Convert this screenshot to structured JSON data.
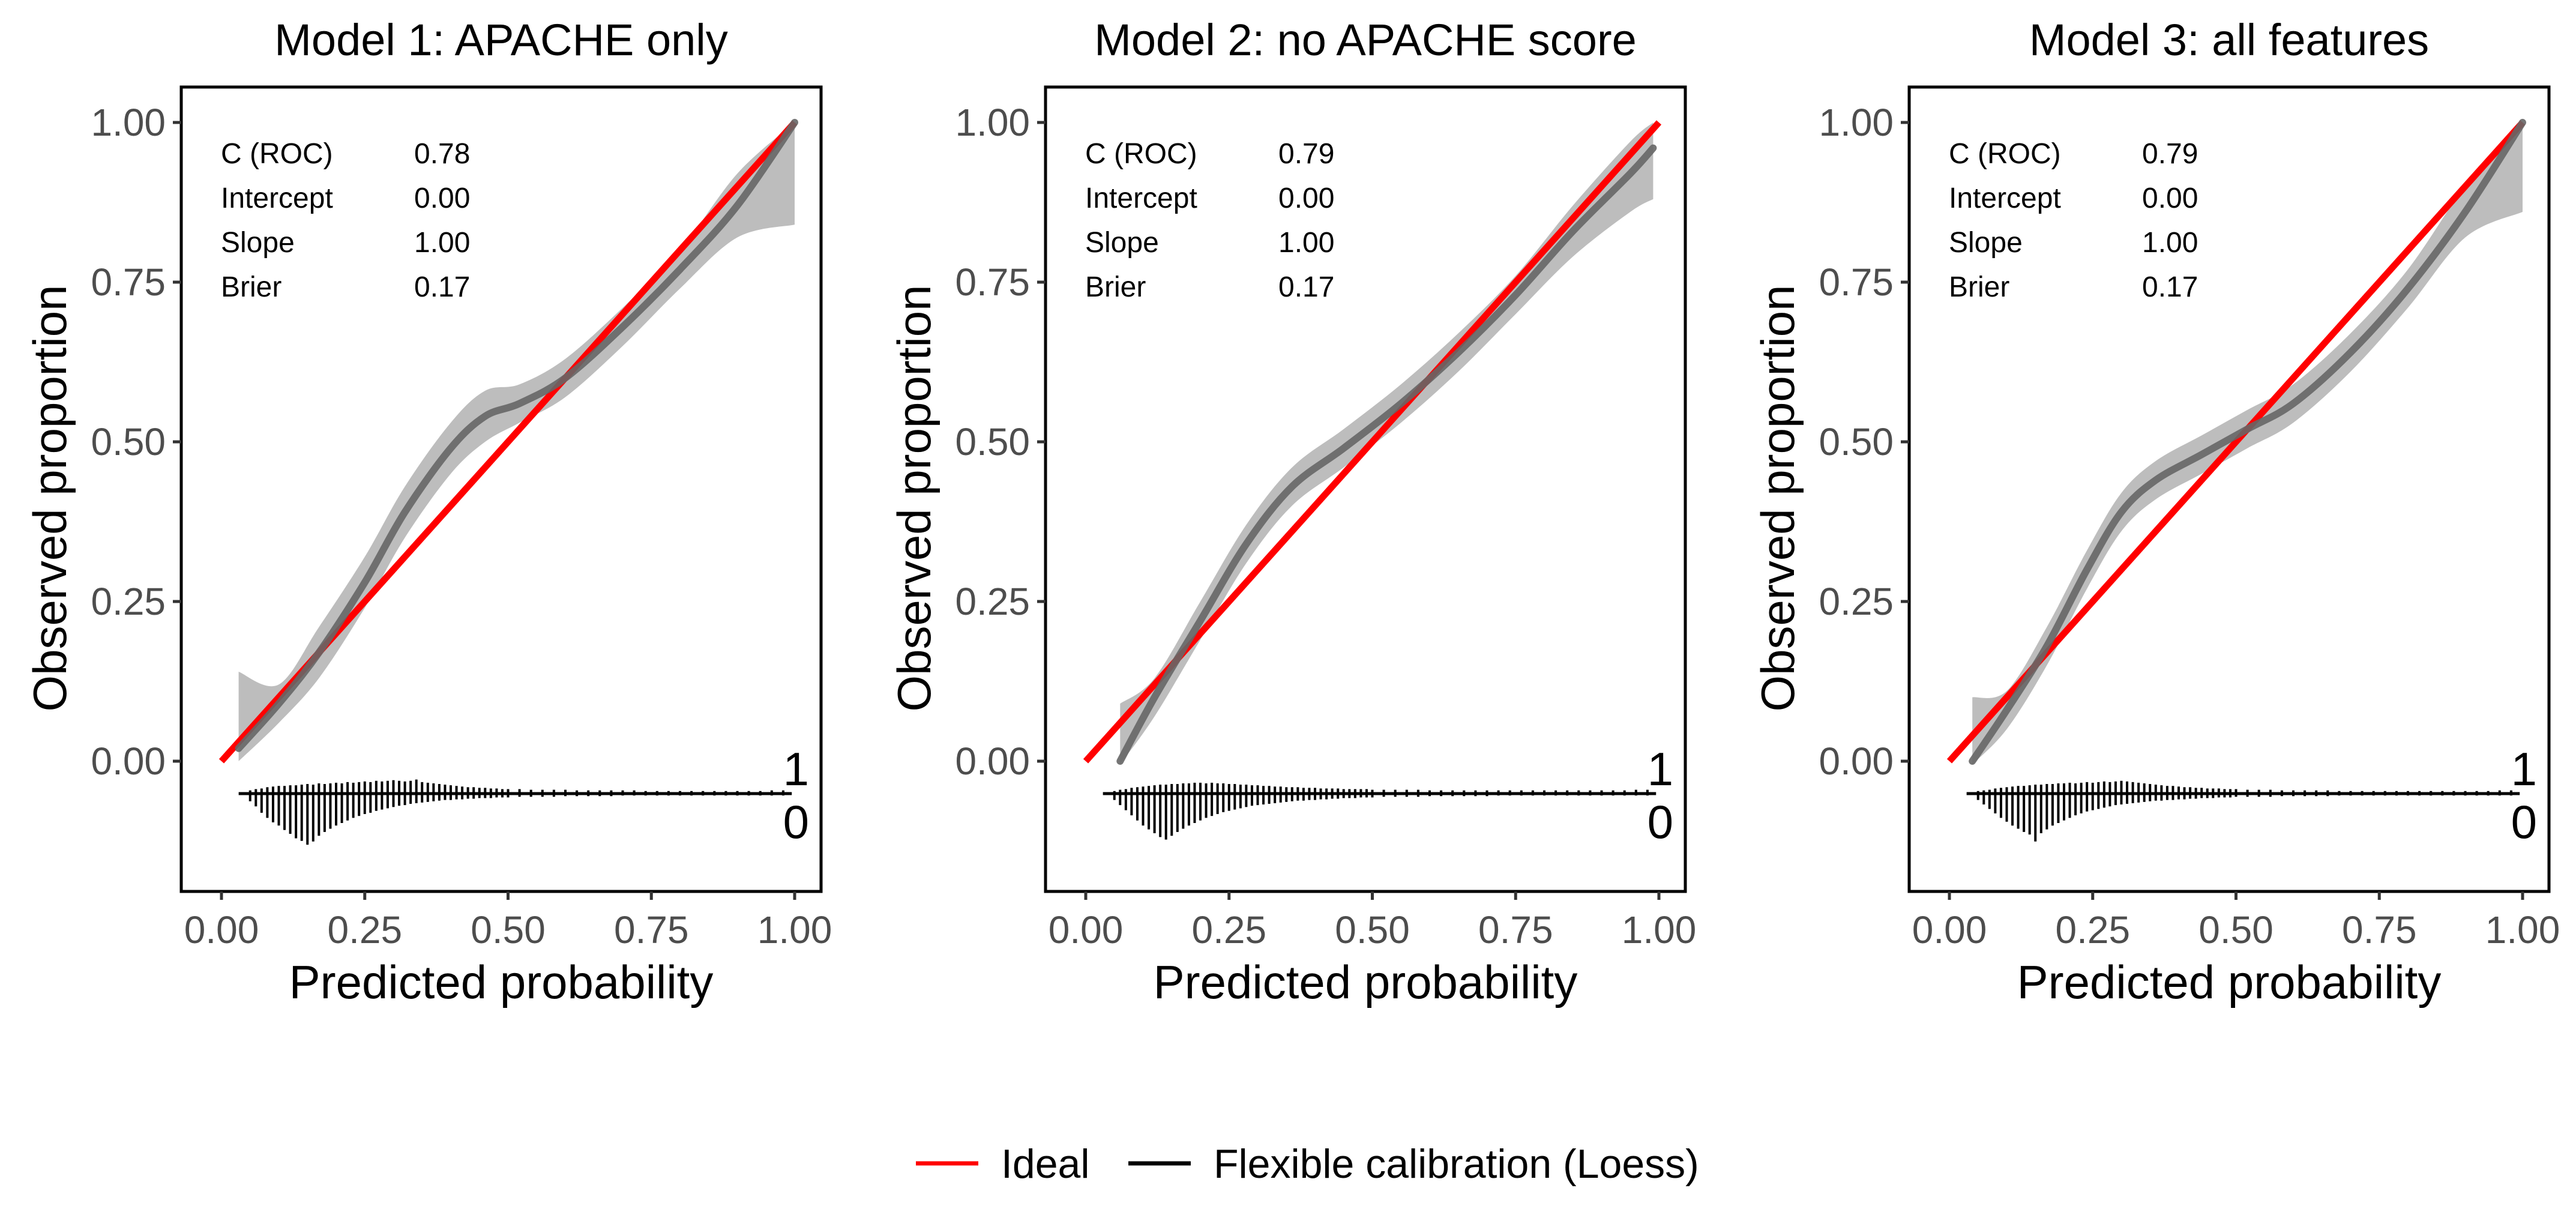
{
  "chart_data": [
    {
      "type": "line",
      "title": "Model 1: APACHE only",
      "xlabel": "Predicted probability",
      "ylabel": "Observed proportion",
      "xlim": [
        0,
        1
      ],
      "ylim": [
        -0.2,
        1.05
      ],
      "x_ticks": [
        0,
        0.25,
        0.5,
        0.75,
        1
      ],
      "x_tick_labels": [
        "0.00",
        "0.25",
        "0.50",
        "0.75",
        "1.00"
      ],
      "y_ticks": [
        0,
        0.25,
        0.5,
        0.75,
        1
      ],
      "y_tick_labels": [
        "0.00",
        "0.25",
        "0.50",
        "0.75",
        "1.00"
      ],
      "stats": [
        {
          "label": "C (ROC)",
          "value": "0.78"
        },
        {
          "label": "Intercept",
          "value": "0.00"
        },
        {
          "label": "Slope",
          "value": "1.00"
        },
        {
          "label": "Brier",
          "value": "0.17"
        }
      ],
      "series": [
        {
          "name": "Ideal",
          "color": "#ff0000",
          "x": [
            0,
            1
          ],
          "y": [
            0,
            1
          ]
        },
        {
          "name": "Flexible calibration (Loess)",
          "color": "#666666",
          "x": [
            0.03,
            0.1,
            0.17,
            0.25,
            0.32,
            0.4,
            0.46,
            0.52,
            0.6,
            0.7,
            0.8,
            0.9,
            1.0
          ],
          "y": [
            0.02,
            0.09,
            0.17,
            0.28,
            0.39,
            0.49,
            0.54,
            0.56,
            0.6,
            0.68,
            0.77,
            0.87,
            1.0
          ],
          "ci_lower": [
            0.0,
            0.06,
            0.13,
            0.24,
            0.35,
            0.45,
            0.5,
            0.53,
            0.57,
            0.65,
            0.74,
            0.82,
            0.84
          ],
          "ci_upper": [
            0.14,
            0.12,
            0.21,
            0.32,
            0.43,
            0.53,
            0.58,
            0.59,
            0.63,
            0.71,
            0.8,
            0.92,
            1.0
          ]
        }
      ],
      "spike_labels": {
        "upper": "1",
        "lower": "0"
      },
      "spikes": {
        "x": [
          0.05,
          0.06,
          0.07,
          0.08,
          0.09,
          0.1,
          0.11,
          0.12,
          0.13,
          0.14,
          0.15,
          0.16,
          0.17,
          0.18,
          0.19,
          0.2,
          0.21,
          0.22,
          0.23,
          0.24,
          0.25,
          0.26,
          0.27,
          0.28,
          0.29,
          0.3,
          0.31,
          0.32,
          0.33,
          0.34,
          0.35,
          0.36,
          0.37,
          0.38,
          0.39,
          0.4,
          0.41,
          0.42,
          0.43,
          0.44,
          0.45,
          0.46,
          0.47,
          0.48,
          0.49,
          0.5,
          0.52,
          0.54,
          0.56,
          0.58,
          0.6,
          0.62,
          0.64,
          0.66,
          0.68,
          0.7,
          0.72,
          0.74,
          0.76,
          0.78,
          0.8,
          0.82,
          0.84,
          0.86,
          0.88,
          0.9,
          0.92,
          0.94,
          0.96,
          0.98
        ],
        "events": [
          0.005,
          0.007,
          0.008,
          0.01,
          0.011,
          0.012,
          0.012,
          0.013,
          0.013,
          0.014,
          0.015,
          0.014,
          0.016,
          0.015,
          0.016,
          0.017,
          0.016,
          0.018,
          0.017,
          0.018,
          0.019,
          0.018,
          0.02,
          0.019,
          0.02,
          0.021,
          0.02,
          0.019,
          0.02,
          0.022,
          0.018,
          0.017,
          0.016,
          0.015,
          0.014,
          0.013,
          0.012,
          0.011,
          0.01,
          0.01,
          0.009,
          0.009,
          0.008,
          0.008,
          0.007,
          0.007,
          0.007,
          0.006,
          0.006,
          0.006,
          0.006,
          0.005,
          0.005,
          0.005,
          0.005,
          0.005,
          0.005,
          0.004,
          0.004,
          0.004,
          0.004,
          0.004,
          0.004,
          0.004,
          0.004,
          0.004,
          0.004,
          0.004,
          0.005,
          0.005
        ],
        "non_events": [
          0.012,
          0.02,
          0.03,
          0.038,
          0.045,
          0.05,
          0.057,
          0.063,
          0.07,
          0.074,
          0.08,
          0.075,
          0.066,
          0.06,
          0.055,
          0.05,
          0.046,
          0.042,
          0.038,
          0.035,
          0.032,
          0.03,
          0.027,
          0.025,
          0.023,
          0.021,
          0.019,
          0.018,
          0.016,
          0.015,
          0.014,
          0.013,
          0.012,
          0.011,
          0.01,
          0.01,
          0.009,
          0.009,
          0.008,
          0.008,
          0.007,
          0.007,
          0.007,
          0.006,
          0.006,
          0.006,
          0.005,
          0.005,
          0.005,
          0.005,
          0.004,
          0.004,
          0.004,
          0.004,
          0.004,
          0.003,
          0.003,
          0.003,
          0.003,
          0.003,
          0.003,
          0.003,
          0.003,
          0.003,
          0.003,
          0.003,
          0.003,
          0.003,
          0.003,
          0.003
        ]
      }
    },
    {
      "type": "line",
      "title": "Model 2: no APACHE score",
      "xlabel": "Predicted probability",
      "ylabel": "Observed proportion",
      "xlim": [
        0,
        1
      ],
      "ylim": [
        -0.2,
        1.05
      ],
      "x_ticks": [
        0,
        0.25,
        0.5,
        0.75,
        1
      ],
      "x_tick_labels": [
        "0.00",
        "0.25",
        "0.50",
        "0.75",
        "1.00"
      ],
      "y_ticks": [
        0,
        0.25,
        0.5,
        0.75,
        1
      ],
      "y_tick_labels": [
        "0.00",
        "0.25",
        "0.50",
        "0.75",
        "1.00"
      ],
      "stats": [
        {
          "label": "C (ROC)",
          "value": "0.79"
        },
        {
          "label": "Intercept",
          "value": "0.00"
        },
        {
          "label": "Slope",
          "value": "1.00"
        },
        {
          "label": "Brier",
          "value": "0.17"
        }
      ],
      "series": [
        {
          "name": "Ideal",
          "color": "#ff0000",
          "x": [
            0,
            1
          ],
          "y": [
            0,
            1
          ]
        },
        {
          "name": "Flexible calibration (Loess)",
          "color": "#666666",
          "x": [
            0.06,
            0.12,
            0.2,
            0.28,
            0.36,
            0.45,
            0.55,
            0.65,
            0.75,
            0.85,
            0.95,
            0.99
          ],
          "y": [
            0.0,
            0.1,
            0.22,
            0.34,
            0.43,
            0.49,
            0.56,
            0.64,
            0.73,
            0.83,
            0.92,
            0.96
          ],
          "ci_lower": [
            -0.005,
            0.07,
            0.19,
            0.31,
            0.4,
            0.46,
            0.53,
            0.61,
            0.7,
            0.79,
            0.86,
            0.88
          ],
          "ci_upper": [
            0.09,
            0.13,
            0.25,
            0.37,
            0.46,
            0.52,
            0.59,
            0.67,
            0.76,
            0.87,
            0.97,
            1.0
          ]
        }
      ],
      "spike_labels": {
        "upper": "1",
        "lower": "0"
      },
      "spikes": {
        "x": [
          0.05,
          0.06,
          0.07,
          0.08,
          0.09,
          0.1,
          0.11,
          0.12,
          0.13,
          0.14,
          0.15,
          0.16,
          0.17,
          0.18,
          0.19,
          0.2,
          0.21,
          0.22,
          0.23,
          0.24,
          0.25,
          0.26,
          0.27,
          0.28,
          0.29,
          0.3,
          0.31,
          0.32,
          0.33,
          0.34,
          0.35,
          0.36,
          0.37,
          0.38,
          0.39,
          0.4,
          0.41,
          0.42,
          0.43,
          0.44,
          0.45,
          0.46,
          0.47,
          0.48,
          0.49,
          0.5,
          0.52,
          0.54,
          0.56,
          0.58,
          0.6,
          0.62,
          0.64,
          0.66,
          0.68,
          0.7,
          0.72,
          0.74,
          0.76,
          0.78,
          0.8,
          0.82,
          0.84,
          0.86,
          0.88,
          0.9,
          0.92,
          0.94,
          0.96,
          0.98
        ],
        "events": [
          0.004,
          0.006,
          0.007,
          0.009,
          0.01,
          0.011,
          0.012,
          0.013,
          0.014,
          0.014,
          0.015,
          0.015,
          0.016,
          0.016,
          0.017,
          0.017,
          0.016,
          0.017,
          0.016,
          0.016,
          0.015,
          0.015,
          0.014,
          0.014,
          0.013,
          0.013,
          0.012,
          0.012,
          0.011,
          0.011,
          0.01,
          0.01,
          0.01,
          0.009,
          0.009,
          0.009,
          0.008,
          0.008,
          0.008,
          0.008,
          0.007,
          0.007,
          0.007,
          0.007,
          0.007,
          0.006,
          0.006,
          0.006,
          0.006,
          0.006,
          0.005,
          0.005,
          0.005,
          0.005,
          0.005,
          0.005,
          0.005,
          0.005,
          0.005,
          0.005,
          0.005,
          0.005,
          0.005,
          0.005,
          0.005,
          0.005,
          0.005,
          0.005,
          0.006,
          0.006
        ],
        "non_events": [
          0.01,
          0.018,
          0.026,
          0.034,
          0.042,
          0.05,
          0.056,
          0.062,
          0.068,
          0.072,
          0.066,
          0.06,
          0.055,
          0.05,
          0.046,
          0.042,
          0.038,
          0.035,
          0.032,
          0.029,
          0.027,
          0.025,
          0.023,
          0.021,
          0.019,
          0.018,
          0.017,
          0.016,
          0.015,
          0.014,
          0.013,
          0.012,
          0.011,
          0.011,
          0.01,
          0.01,
          0.009,
          0.009,
          0.008,
          0.008,
          0.007,
          0.007,
          0.007,
          0.006,
          0.006,
          0.006,
          0.005,
          0.005,
          0.005,
          0.005,
          0.004,
          0.004,
          0.004,
          0.004,
          0.004,
          0.004,
          0.003,
          0.003,
          0.003,
          0.003,
          0.003,
          0.003,
          0.003,
          0.003,
          0.003,
          0.003,
          0.003,
          0.003,
          0.003,
          0.003
        ]
      }
    },
    {
      "type": "line",
      "title": "Model 3: all features",
      "xlabel": "Predicted probability",
      "ylabel": "Observed proportion",
      "xlim": [
        0,
        1
      ],
      "ylim": [
        -0.2,
        1.05
      ],
      "x_ticks": [
        0,
        0.25,
        0.5,
        0.75,
        1
      ],
      "x_tick_labels": [
        "0.00",
        "0.25",
        "0.50",
        "0.75",
        "1.00"
      ],
      "y_ticks": [
        0,
        0.25,
        0.5,
        0.75,
        1
      ],
      "y_tick_labels": [
        "0.00",
        "0.25",
        "0.50",
        "0.75",
        "1.00"
      ],
      "stats": [
        {
          "label": "C (ROC)",
          "value": "0.79"
        },
        {
          "label": "Intercept",
          "value": "0.00"
        },
        {
          "label": "Slope",
          "value": "1.00"
        },
        {
          "label": "Brier",
          "value": "0.17"
        }
      ],
      "series": [
        {
          "name": "Ideal",
          "color": "#ff0000",
          "x": [
            0,
            1
          ],
          "y": [
            0,
            1
          ]
        },
        {
          "name": "Flexible calibration (Loess)",
          "color": "#666666",
          "x": [
            0.04,
            0.1,
            0.17,
            0.24,
            0.3,
            0.36,
            0.44,
            0.52,
            0.6,
            0.7,
            0.8,
            0.9,
            1.0
          ],
          "y": [
            0.0,
            0.08,
            0.18,
            0.3,
            0.39,
            0.44,
            0.48,
            0.52,
            0.56,
            0.64,
            0.74,
            0.86,
            1.0
          ],
          "ci_lower": [
            -0.005,
            0.05,
            0.15,
            0.27,
            0.36,
            0.41,
            0.45,
            0.49,
            0.53,
            0.61,
            0.71,
            0.82,
            0.86
          ],
          "ci_upper": [
            0.1,
            0.11,
            0.21,
            0.33,
            0.42,
            0.47,
            0.51,
            0.55,
            0.59,
            0.67,
            0.77,
            0.9,
            1.0
          ]
        }
      ],
      "spike_labels": {
        "upper": "1",
        "lower": "0"
      },
      "spikes": {
        "x": [
          0.05,
          0.06,
          0.07,
          0.08,
          0.09,
          0.1,
          0.11,
          0.12,
          0.13,
          0.14,
          0.15,
          0.16,
          0.17,
          0.18,
          0.19,
          0.2,
          0.21,
          0.22,
          0.23,
          0.24,
          0.25,
          0.26,
          0.27,
          0.28,
          0.29,
          0.3,
          0.31,
          0.32,
          0.33,
          0.34,
          0.35,
          0.36,
          0.37,
          0.38,
          0.39,
          0.4,
          0.41,
          0.42,
          0.43,
          0.44,
          0.45,
          0.46,
          0.47,
          0.48,
          0.49,
          0.5,
          0.52,
          0.54,
          0.56,
          0.58,
          0.6,
          0.62,
          0.64,
          0.66,
          0.68,
          0.7,
          0.72,
          0.74,
          0.76,
          0.78,
          0.8,
          0.82,
          0.84,
          0.86,
          0.88,
          0.9,
          0.92,
          0.94,
          0.96,
          0.98
        ],
        "events": [
          0.004,
          0.005,
          0.006,
          0.008,
          0.009,
          0.01,
          0.011,
          0.012,
          0.012,
          0.013,
          0.014,
          0.014,
          0.015,
          0.015,
          0.016,
          0.016,
          0.017,
          0.016,
          0.017,
          0.018,
          0.017,
          0.018,
          0.019,
          0.018,
          0.019,
          0.02,
          0.019,
          0.018,
          0.017,
          0.016,
          0.015,
          0.014,
          0.013,
          0.012,
          0.012,
          0.011,
          0.01,
          0.01,
          0.009,
          0.009,
          0.008,
          0.008,
          0.008,
          0.007,
          0.007,
          0.007,
          0.006,
          0.006,
          0.006,
          0.005,
          0.005,
          0.005,
          0.005,
          0.005,
          0.004,
          0.004,
          0.004,
          0.004,
          0.004,
          0.004,
          0.004,
          0.004,
          0.004,
          0.004,
          0.004,
          0.004,
          0.004,
          0.004,
          0.005,
          0.005
        ],
        "non_events": [
          0.01,
          0.017,
          0.024,
          0.031,
          0.038,
          0.044,
          0.05,
          0.055,
          0.06,
          0.064,
          0.075,
          0.062,
          0.056,
          0.05,
          0.046,
          0.042,
          0.038,
          0.034,
          0.031,
          0.028,
          0.026,
          0.024,
          0.022,
          0.02,
          0.018,
          0.017,
          0.016,
          0.015,
          0.014,
          0.013,
          0.012,
          0.011,
          0.011,
          0.01,
          0.01,
          0.009,
          0.009,
          0.008,
          0.008,
          0.007,
          0.007,
          0.007,
          0.006,
          0.006,
          0.006,
          0.005,
          0.005,
          0.005,
          0.005,
          0.004,
          0.004,
          0.004,
          0.004,
          0.004,
          0.003,
          0.003,
          0.003,
          0.003,
          0.003,
          0.003,
          0.003,
          0.003,
          0.003,
          0.003,
          0.003,
          0.003,
          0.003,
          0.003,
          0.003,
          0.003
        ]
      }
    }
  ],
  "legend": {
    "items": [
      {
        "label": "Ideal",
        "color": "#ff0000"
      },
      {
        "label": "Flexible calibration (Loess)",
        "color": "#000000"
      }
    ]
  },
  "style": {
    "ideal_color": "#ff0000",
    "loess_color": "#666666",
    "ci_fill": "#bdbdbd",
    "spike_color": "#000000"
  }
}
